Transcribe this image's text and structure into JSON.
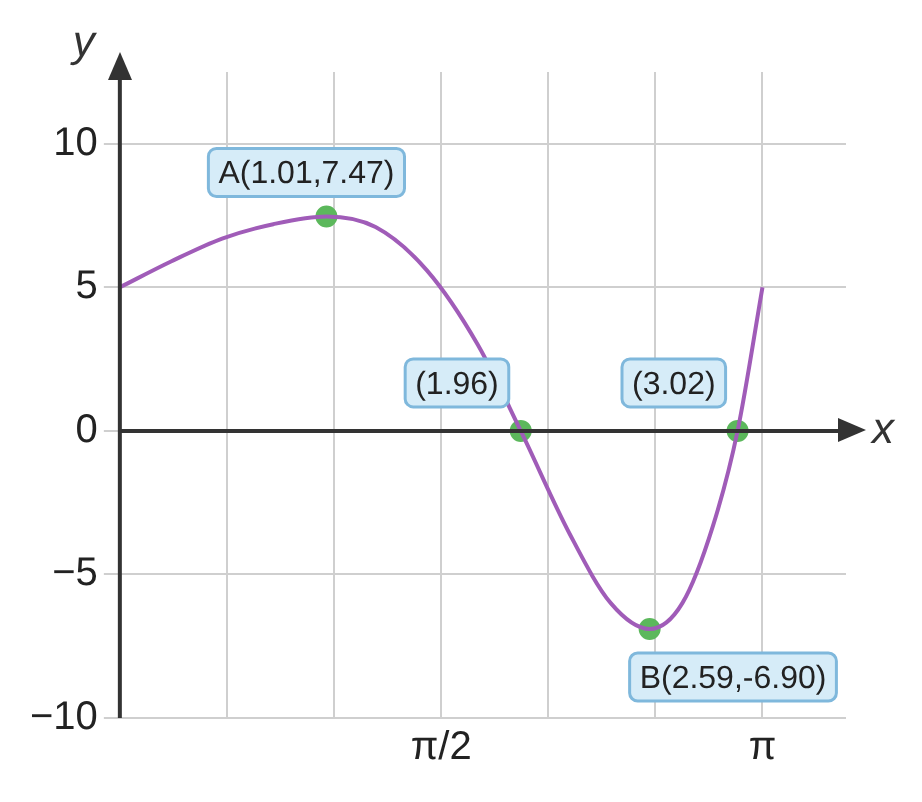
{
  "chart_data": {
    "type": "line",
    "xlabel": "x",
    "ylabel": "y",
    "xlim": [
      0,
      3.55
    ],
    "ylim": [
      -10,
      12.5
    ],
    "xticks": [
      {
        "value": 0.5236,
        "label": null
      },
      {
        "value": 1.5708,
        "label": "π/2"
      },
      {
        "value": 1.0472,
        "label": null
      },
      {
        "value": 2.0944,
        "label": null
      },
      {
        "value": 2.618,
        "label": null
      },
      {
        "value": 3.1416,
        "label": "π"
      }
    ],
    "yticks": [
      -10,
      -5,
      0,
      5,
      10
    ],
    "grid": true,
    "legend": false,
    "series": [
      {
        "color": "#a05cb8",
        "marker": "none",
        "x": [
          0,
          0.25,
          0.5,
          0.75,
          1.01,
          1.25,
          1.5,
          1.75,
          1.96,
          2.2,
          2.4,
          2.59,
          2.75,
          2.9,
          3.02,
          3.1416
        ],
        "values": [
          5,
          5.9,
          6.7,
          7.2,
          7.47,
          7.1,
          5.6,
          3.0,
          0,
          -3.6,
          -6.0,
          -6.9,
          -6.0,
          -3.3,
          0,
          5
        ]
      },
      {
        "type": "scatter",
        "color": "#5cb85c",
        "marker": "circle",
        "x": [
          1.01,
          1.96,
          2.59,
          3.02
        ],
        "values": [
          7.47,
          0,
          -6.9,
          0
        ]
      }
    ],
    "annotations": [
      {
        "text": "A(1.01,7.47)",
        "x": 1.01,
        "y": 7.47
      },
      {
        "text": "(1.96)",
        "x": 1.96,
        "y": 0
      },
      {
        "text": "B(2.59,-6.90)",
        "x": 2.59,
        "y": -6.9
      },
      {
        "text": "(3.02)",
        "x": 3.02,
        "y": 0
      }
    ]
  }
}
